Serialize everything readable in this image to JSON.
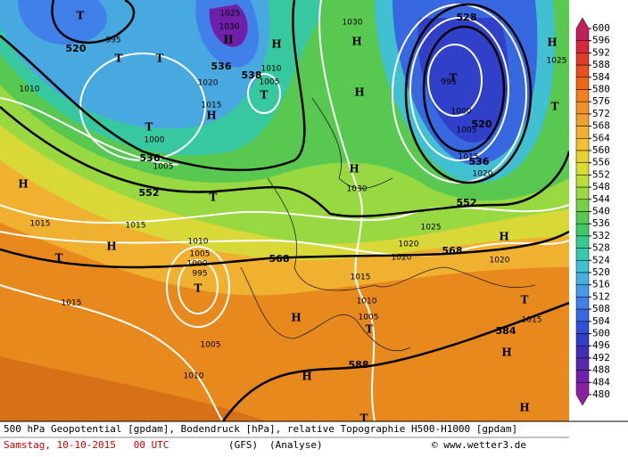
{
  "map": {
    "height_labels": [
      "520",
      "536",
      "538",
      "528",
      "520",
      "536",
      "552",
      "552",
      "536",
      "568",
      "568",
      "584",
      "588"
    ],
    "pressure_labels": [
      "1030",
      "1025",
      "1030",
      "1020",
      "1015",
      "1010",
      "1005",
      "1000",
      "1005",
      "1010",
      "1000",
      "1005",
      "1015",
      "1020",
      "1030",
      "1025",
      "1020",
      "1020",
      "1020",
      "1015",
      "1015",
      "1010",
      "1005",
      "1000",
      "995",
      "1015",
      "1015",
      "1010",
      "1005",
      "1005",
      "1010",
      "1015",
      "1025",
      "995",
      "995"
    ],
    "high_low_marks": [
      "T",
      "T",
      "T",
      "H",
      "H",
      "T",
      "T",
      "H",
      "H",
      "H",
      "H",
      "T",
      "H",
      "T",
      "H",
      "T",
      "H",
      "T",
      "H",
      "T",
      "H",
      "T",
      "H",
      "T",
      "H",
      "H",
      "T"
    ]
  },
  "colorbar": {
    "ticks": [
      600,
      596,
      592,
      588,
      584,
      580,
      576,
      572,
      568,
      564,
      560,
      556,
      552,
      548,
      544,
      540,
      536,
      532,
      528,
      524,
      520,
      516,
      512,
      508,
      504,
      500,
      496,
      492,
      488,
      484,
      480
    ],
    "colors": [
      "#c0205a",
      "#d8283c",
      "#e03c28",
      "#e85020",
      "#ec6818",
      "#f08020",
      "#f09028",
      "#f0a030",
      "#f0b030",
      "#f0c030",
      "#e8d030",
      "#d8dc30",
      "#b8dc38",
      "#98d840",
      "#78d048",
      "#58c850",
      "#40c868",
      "#38c890",
      "#38c8b0",
      "#40c0d0",
      "#48b0e0",
      "#4898e8",
      "#4080e8",
      "#3868e0",
      "#3050d8",
      "#3040c8",
      "#4030b8",
      "#5828b0",
      "#7020a8",
      "#8820a0"
    ]
  },
  "footer": {
    "line1": "500 hPa Geopotential [gpdam], Bodendruck [hPa], relative Topographie H500-H1000 [gpdam]",
    "date": "Samstag, 10-10-2015   00 UTC",
    "model": "(GFS)",
    "run": "(Analyse)",
    "copyright": "© www.wetter3.de"
  }
}
